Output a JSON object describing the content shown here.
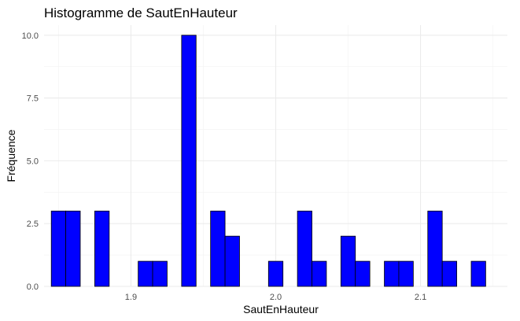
{
  "chart_data": {
    "type": "histogram",
    "title": "Histogramme de SautEnHauteur",
    "xlabel": "SautEnHauteur",
    "ylabel": "Fréquence",
    "bar_color": "#0000ff",
    "bar_border_color": "#000000",
    "grid": true,
    "xlim": [
      1.84,
      2.16
    ],
    "ylim": [
      0,
      10.4
    ],
    "x_ticks": [
      1.9,
      2.0,
      2.1
    ],
    "x_tick_labels": [
      "1.9",
      "2.0",
      "2.1"
    ],
    "y_ticks": [
      0,
      2.5,
      5,
      7.5,
      10
    ],
    "y_tick_labels": [
      "0.0",
      "2.5",
      "5.0",
      "7.5",
      "10.0"
    ],
    "bins": [
      {
        "x": 1.85,
        "count": 3
      },
      {
        "x": 1.86,
        "count": 3
      },
      {
        "x": 1.88,
        "count": 3
      },
      {
        "x": 1.91,
        "count": 1
      },
      {
        "x": 1.92,
        "count": 1
      },
      {
        "x": 1.94,
        "count": 10
      },
      {
        "x": 1.96,
        "count": 3
      },
      {
        "x": 1.97,
        "count": 2
      },
      {
        "x": 2.0,
        "count": 1
      },
      {
        "x": 2.02,
        "count": 3
      },
      {
        "x": 2.03,
        "count": 1
      },
      {
        "x": 2.05,
        "count": 2
      },
      {
        "x": 2.06,
        "count": 1
      },
      {
        "x": 2.08,
        "count": 1
      },
      {
        "x": 2.09,
        "count": 1
      },
      {
        "x": 2.11,
        "count": 3
      },
      {
        "x": 2.12,
        "count": 1
      },
      {
        "x": 2.14,
        "count": 1
      }
    ]
  }
}
